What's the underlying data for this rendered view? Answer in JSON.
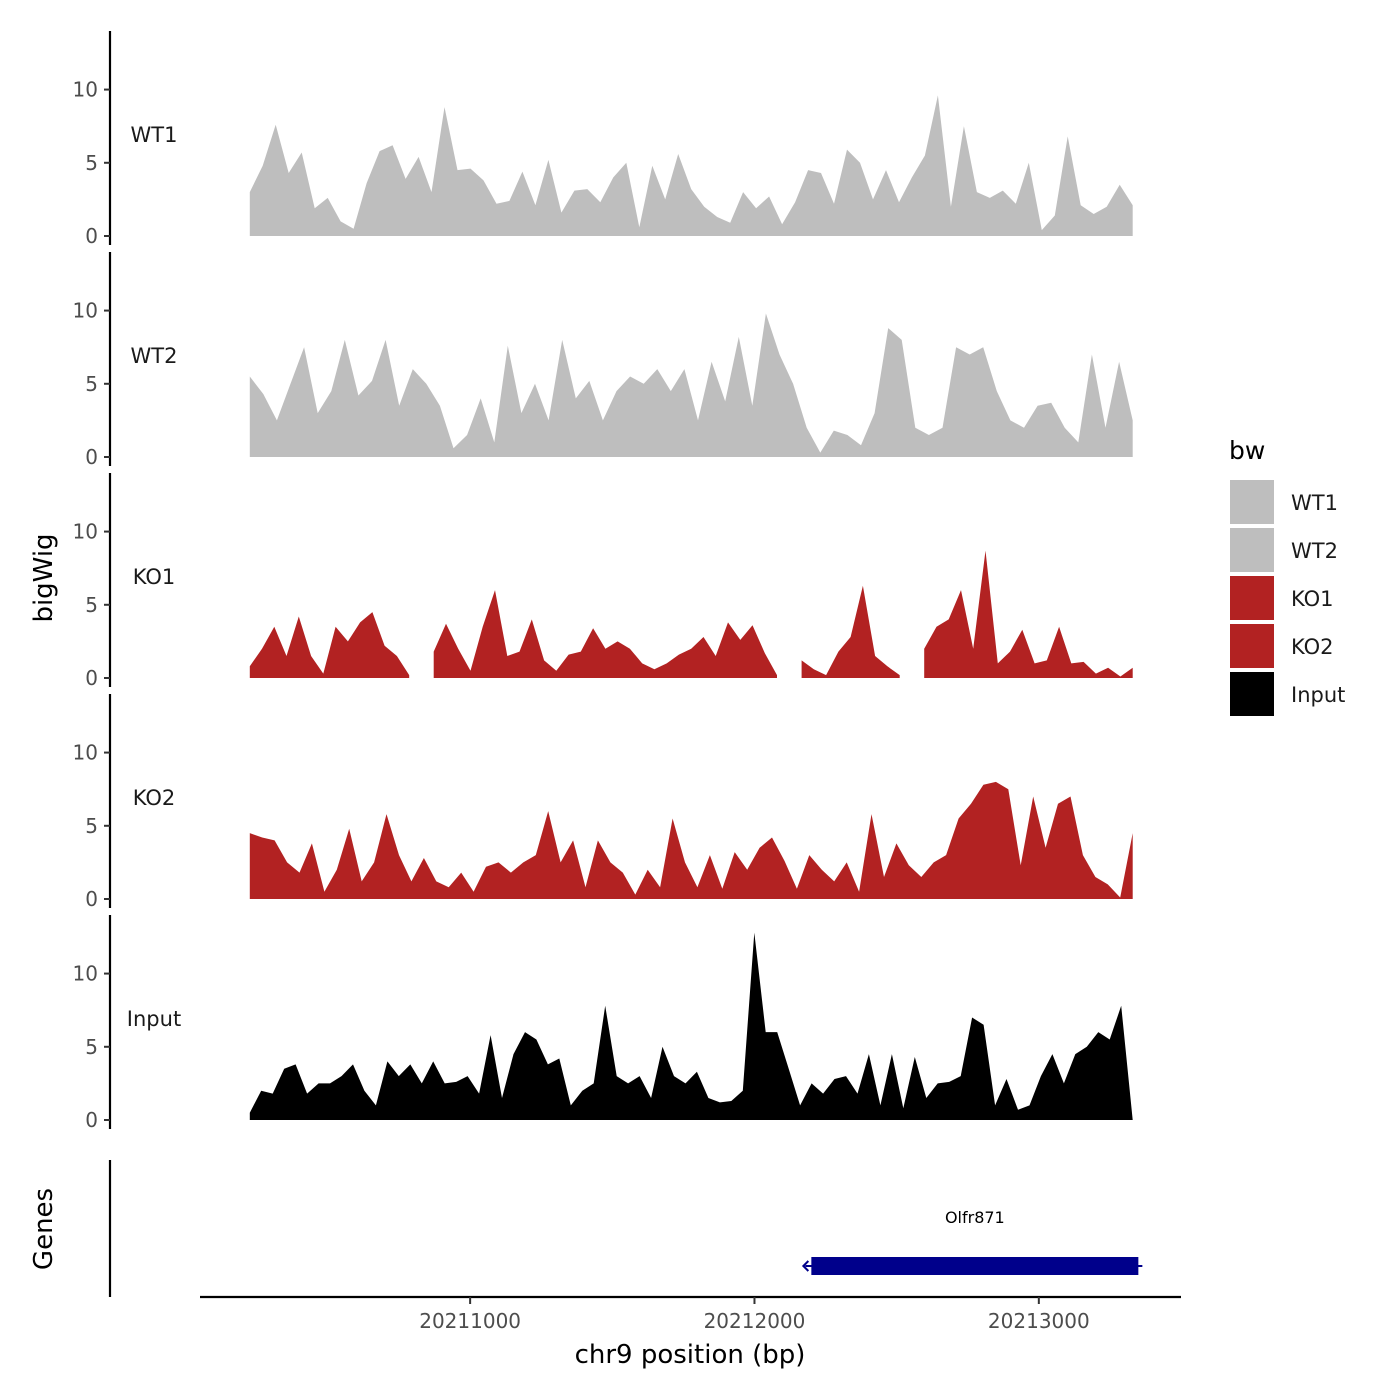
{
  "chart_data": {
    "type": "area",
    "chromosome": "chr9",
    "xlabel": "chr9 position (bp)",
    "ylabel": "bigWig",
    "genes_label": "Genes",
    "xlim": [
      20210050,
      20213500
    ],
    "x_ticks": [
      20211000,
      20212000,
      20213000
    ],
    "x_tick_labels": [
      "20211000",
      "20212000",
      "20213000"
    ],
    "ylim": [
      0,
      14
    ],
    "y_ticks": [
      0,
      5,
      10
    ],
    "y_tick_labels": [
      "0",
      "5",
      "10"
    ],
    "data_range": [
      20210225,
      20213330
    ],
    "legend": {
      "title": "bw",
      "entries": [
        {
          "label": "WT1",
          "color": "#bebebe"
        },
        {
          "label": "WT2",
          "color": "#bebebe"
        },
        {
          "label": "KO1",
          "color": "#b22222"
        },
        {
          "label": "KO2",
          "color": "#b22222"
        },
        {
          "label": "Input",
          "color": "#000000"
        }
      ]
    },
    "series": [
      {
        "name": "WT1",
        "color": "#bebebe",
        "values": [
          3.0,
          4.8,
          7.6,
          4.3,
          5.7,
          1.9,
          2.6,
          1.0,
          0.5,
          3.6,
          5.8,
          6.2,
          3.9,
          5.4,
          3.0,
          8.8,
          4.5,
          4.6,
          3.8,
          2.2,
          2.4,
          4.4,
          2.1,
          5.2,
          1.6,
          3.1,
          3.2,
          2.3,
          4.0,
          5.0,
          0.6,
          4.8,
          2.5,
          5.6,
          3.2,
          2.0,
          1.3,
          0.9,
          3.0,
          1.9,
          2.7,
          0.8,
          2.3,
          4.5,
          4.3,
          2.2,
          5.9,
          5.0,
          2.5,
          4.5,
          2.3,
          4.0,
          5.5,
          9.6,
          2.0,
          7.5,
          3.0,
          2.6,
          3.1,
          2.2,
          5.0,
          0.4,
          1.4,
          6.8,
          2.1,
          1.5,
          2.0,
          3.5,
          2.1
        ]
      },
      {
        "name": "WT2",
        "color": "#bebebe",
        "values": [
          5.5,
          4.3,
          2.5,
          5.0,
          7.5,
          3.0,
          4.5,
          8.0,
          4.2,
          5.2,
          8.0,
          3.5,
          6.0,
          5.0,
          3.5,
          0.6,
          1.5,
          4.0,
          1.0,
          7.6,
          3.0,
          5.0,
          2.5,
          8.0,
          4.0,
          5.2,
          2.5,
          4.5,
          5.5,
          5.0,
          6.0,
          4.5,
          6.0,
          2.5,
          6.5,
          3.8,
          8.2,
          3.5,
          9.8,
          7.0,
          5.0,
          2.0,
          0.3,
          1.8,
          1.5,
          0.8,
          3.0,
          8.8,
          8.0,
          2.0,
          1.5,
          2.0,
          7.5,
          7.0,
          7.5,
          4.5,
          2.5,
          2.0,
          3.5,
          3.7,
          2.0,
          1.0,
          7.0,
          2.0,
          6.5,
          2.5
        ]
      },
      {
        "name": "KO1",
        "color": "#b22222",
        "values": [
          0.8,
          2.0,
          3.5,
          1.5,
          4.2,
          1.5,
          0.3,
          3.5,
          2.5,
          3.8,
          4.5,
          2.2,
          1.5,
          0.2,
          null,
          1.8,
          3.7,
          2.0,
          0.5,
          3.5,
          6.0,
          1.5,
          1.8,
          4.0,
          1.2,
          0.5,
          1.6,
          1.8,
          3.4,
          2.0,
          2.5,
          2.0,
          1.0,
          0.6,
          1.0,
          1.6,
          2.0,
          2.8,
          1.5,
          3.8,
          2.6,
          3.6,
          1.7,
          0.2,
          null,
          1.2,
          0.6,
          0.2,
          1.8,
          2.8,
          6.3,
          1.5,
          0.8,
          0.2,
          null,
          2.0,
          3.5,
          4.0,
          6.0,
          2.0,
          8.7,
          1.0,
          1.8,
          3.3,
          1.0,
          1.2,
          3.5,
          1.0,
          1.1,
          0.3,
          0.7,
          0.1,
          0.7
        ]
      },
      {
        "name": "KO2",
        "color": "#b22222",
        "values": [
          4.5,
          4.2,
          4.0,
          2.5,
          1.8,
          3.8,
          0.5,
          2.0,
          4.8,
          1.2,
          2.5,
          5.8,
          3.0,
          1.2,
          2.8,
          1.2,
          0.8,
          1.8,
          0.5,
          2.2,
          2.5,
          1.8,
          2.5,
          3.0,
          6.0,
          2.5,
          4.0,
          0.8,
          4.0,
          2.5,
          1.8,
          0.3,
          2.0,
          0.8,
          5.5,
          2.5,
          0.8,
          3.0,
          0.7,
          3.2,
          2.0,
          3.5,
          4.2,
          2.6,
          0.7,
          3.0,
          2.0,
          1.2,
          2.5,
          0.5,
          5.8,
          1.5,
          3.8,
          2.3,
          1.5,
          2.5,
          3.0,
          5.5,
          6.5,
          7.8,
          8.0,
          7.5,
          2.3,
          7.0,
          3.5,
          6.5,
          7.0,
          3.0,
          1.5,
          1.0,
          0.1,
          4.5
        ]
      },
      {
        "name": "Input",
        "color": "#000000",
        "values": [
          0.5,
          2.0,
          1.8,
          3.5,
          3.8,
          1.8,
          2.5,
          2.5,
          3.0,
          3.8,
          2.0,
          1.0,
          4.0,
          3.0,
          3.8,
          2.5,
          4.0,
          2.5,
          2.6,
          3.0,
          1.8,
          5.8,
          1.5,
          4.5,
          6.0,
          5.5,
          3.8,
          4.2,
          1.0,
          2.0,
          2.5,
          7.8,
          3.0,
          2.5,
          3.0,
          1.5,
          5.0,
          3.0,
          2.5,
          3.3,
          1.5,
          1.2,
          1.3,
          2.0,
          12.8,
          6.0,
          6.0,
          3.5,
          1.0,
          2.5,
          1.8,
          2.8,
          3.0,
          1.8,
          4.5,
          1.0,
          4.5,
          0.8,
          4.3,
          1.5,
          2.5,
          2.6,
          3.0,
          7.0,
          6.5,
          1.0,
          2.8,
          0.7,
          1.0,
          3.0,
          4.5,
          2.5,
          4.5,
          5.0,
          6.0,
          5.5,
          7.8,
          0.0
        ]
      }
    ],
    "genes": [
      {
        "name": "Olfr871",
        "start": 20212200,
        "end": 20213350,
        "strand": "-",
        "color": "#00008b"
      }
    ]
  }
}
